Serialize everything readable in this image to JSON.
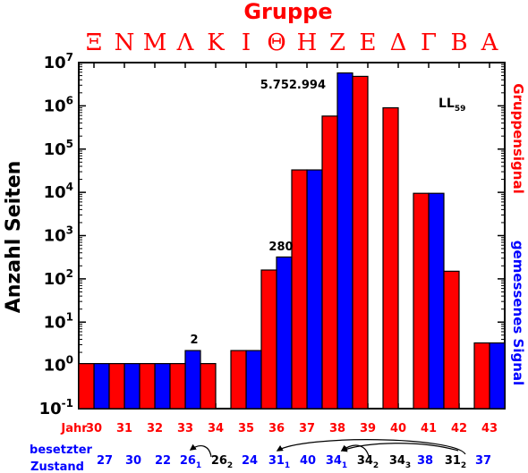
{
  "chart_data": {
    "type": "bar",
    "title": "Gruppe",
    "group_letters": [
      "Ξ",
      "Ν",
      "Μ",
      "Λ",
      "Κ",
      "Ι",
      "Θ",
      "Η",
      "Ζ",
      "Ε",
      "Δ",
      "Γ",
      "Β",
      "Α"
    ],
    "ylabel": "Anzahl Seiten",
    "y_scale": "log",
    "ylim_exponents": [
      -1,
      7
    ],
    "y_tick_base": "10",
    "y_tick_exponents": [
      "-1",
      "0",
      "1",
      "2",
      "3",
      "4",
      "5",
      "6",
      "7"
    ],
    "x_header": "Jahr",
    "categories": [
      "30",
      "31",
      "32",
      "33",
      "34",
      "35",
      "36",
      "37",
      "38",
      "39",
      "40",
      "41",
      "42",
      "43"
    ],
    "series": [
      {
        "name": "Gruppensignal",
        "color": "#ff0000",
        "values": [
          1.1,
          1.1,
          1.1,
          1.1,
          1.1,
          2.2,
          160,
          33000,
          580000,
          4800000,
          900000,
          9500,
          150,
          3.3
        ]
      },
      {
        "name": "gemessenes Signal",
        "color": "#0000ff",
        "values": [
          1.1,
          1.1,
          1.1,
          2.2,
          null,
          2.2,
          320,
          33000,
          5752994,
          null,
          null,
          9500,
          null,
          3.3
        ]
      }
    ],
    "annotations": [
      "2",
      "280",
      "5.752.994"
    ],
    "model_label": "LL",
    "model_label_sub": "59",
    "state_header": [
      "besetzter",
      "Zustand"
    ],
    "states": [
      {
        "text": "27",
        "sub": "",
        "color": "#0000ff"
      },
      {
        "text": "30",
        "sub": "",
        "color": "#0000ff"
      },
      {
        "text": "22",
        "sub": "",
        "color": "#0000ff"
      },
      {
        "text": "26",
        "sub": "1",
        "color": "#0000ff"
      },
      {
        "text": "26",
        "sub": "2",
        "color": "#000000"
      },
      {
        "text": "24",
        "sub": "",
        "color": "#0000ff"
      },
      {
        "text": "31",
        "sub": "1",
        "color": "#0000ff"
      },
      {
        "text": "40",
        "sub": "",
        "color": "#0000ff"
      },
      {
        "text": "34",
        "sub": "1",
        "color": "#0000ff"
      },
      {
        "text": "34",
        "sub": "2",
        "color": "#000000"
      },
      {
        "text": "34",
        "sub": "3",
        "color": "#000000"
      },
      {
        "text": "38",
        "sub": "",
        "color": "#0000ff"
      },
      {
        "text": "31",
        "sub": "2",
        "color": "#000000"
      },
      {
        "text": "37",
        "sub": "",
        "color": "#0000ff"
      }
    ]
  }
}
